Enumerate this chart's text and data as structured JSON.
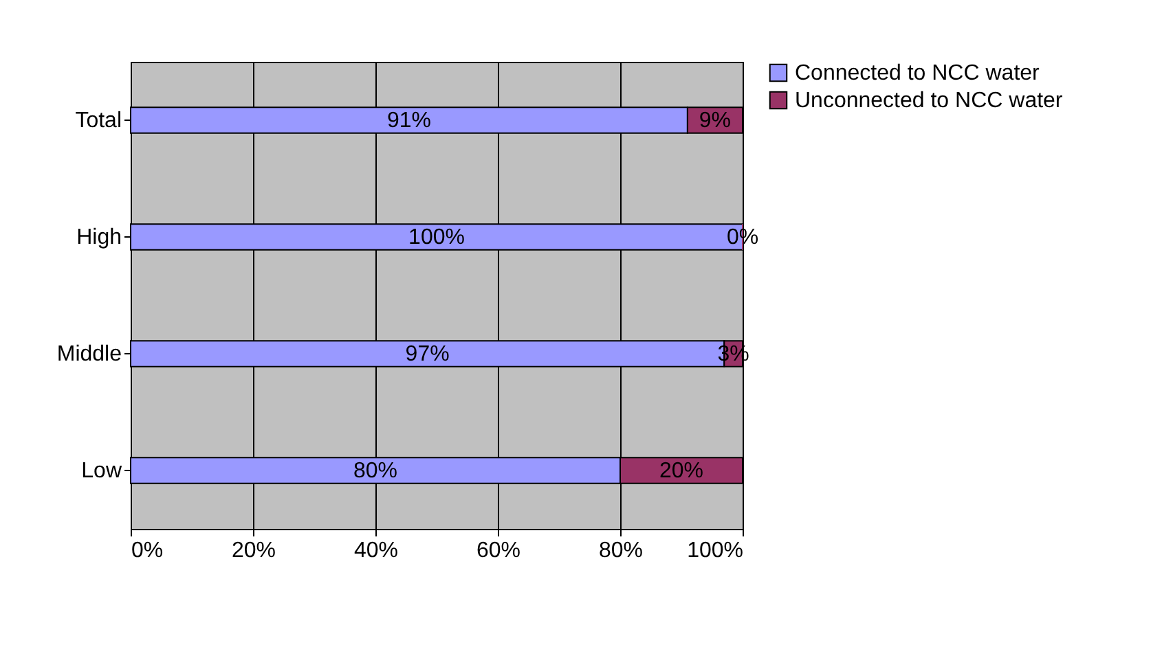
{
  "chart_data": {
    "type": "bar",
    "orientation": "horizontal",
    "stacked": true,
    "categories": [
      "Total",
      "High",
      "Middle",
      "Low"
    ],
    "series": [
      {
        "name": "Connected to NCC water",
        "color": "#9999ff",
        "values": [
          91,
          100,
          97,
          80
        ],
        "value_labels": [
          "91%",
          "100%",
          "97%",
          "80%"
        ]
      },
      {
        "name": "Unconnected to NCC water",
        "color": "#993366",
        "values": [
          9,
          0,
          3,
          20
        ],
        "value_labels": [
          "9%",
          "0%",
          "3%",
          "20%"
        ]
      }
    ],
    "xlim": [
      0,
      100
    ],
    "xticks": [
      {
        "value": 0,
        "label": "0%"
      },
      {
        "value": 20,
        "label": "20%"
      },
      {
        "value": 40,
        "label": "40%"
      },
      {
        "value": 60,
        "label": "60%"
      },
      {
        "value": 80,
        "label": "80%"
      },
      {
        "value": 100,
        "label": "100%"
      }
    ],
    "grid": "x",
    "legend": "right"
  }
}
